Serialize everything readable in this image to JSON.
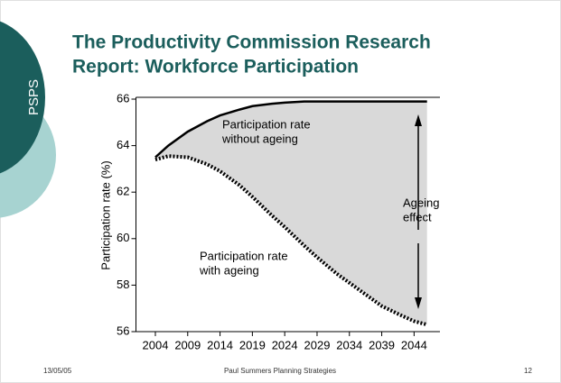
{
  "side_label": "PSPS",
  "title_lines": [
    "The Productivity Commission Research",
    "Report: Workforce Participation"
  ],
  "footer": {
    "date": "13/05/05",
    "presenter": "Paul Summers Planning Strategies",
    "page": "12"
  },
  "chart_data": {
    "type": "line",
    "y_label": "Participation rate (%)",
    "x": [
      2004,
      2006,
      2009,
      2012,
      2014,
      2017,
      2019,
      2022,
      2024,
      2027,
      2029,
      2032,
      2034,
      2037,
      2039,
      2042,
      2044,
      2046
    ],
    "series": [
      {
        "name": "Participation rate without ageing",
        "color": "#000000",
        "style": "solid",
        "values": [
          63.5,
          64.0,
          64.6,
          65.05,
          65.3,
          65.55,
          65.7,
          65.8,
          65.85,
          65.9,
          65.9,
          65.9,
          65.9,
          65.9,
          65.9,
          65.9,
          65.9,
          65.9
        ]
      },
      {
        "name": "Participation rate with ageing",
        "color": "#000000",
        "style": "dotted",
        "values": [
          63.4,
          63.55,
          63.5,
          63.2,
          62.9,
          62.3,
          61.8,
          61.0,
          60.5,
          59.7,
          59.2,
          58.5,
          58.1,
          57.5,
          57.1,
          56.7,
          56.45,
          56.3
        ]
      }
    ],
    "fill_color": "#d9d9d9",
    "annotations": [
      {
        "lines": [
          "Participation rate",
          "without ageing"
        ]
      },
      {
        "lines": [
          "Participation rate",
          "with ageing"
        ]
      },
      {
        "lines": [
          "Ageing",
          "effect"
        ]
      }
    ],
    "xlim": [
      2001,
      2048
    ],
    "xticks": [
      2004,
      2009,
      2014,
      2019,
      2024,
      2029,
      2034,
      2039,
      2044
    ],
    "ylim": [
      56,
      66
    ],
    "yticks": [
      56,
      58,
      60,
      62,
      64,
      66
    ]
  }
}
